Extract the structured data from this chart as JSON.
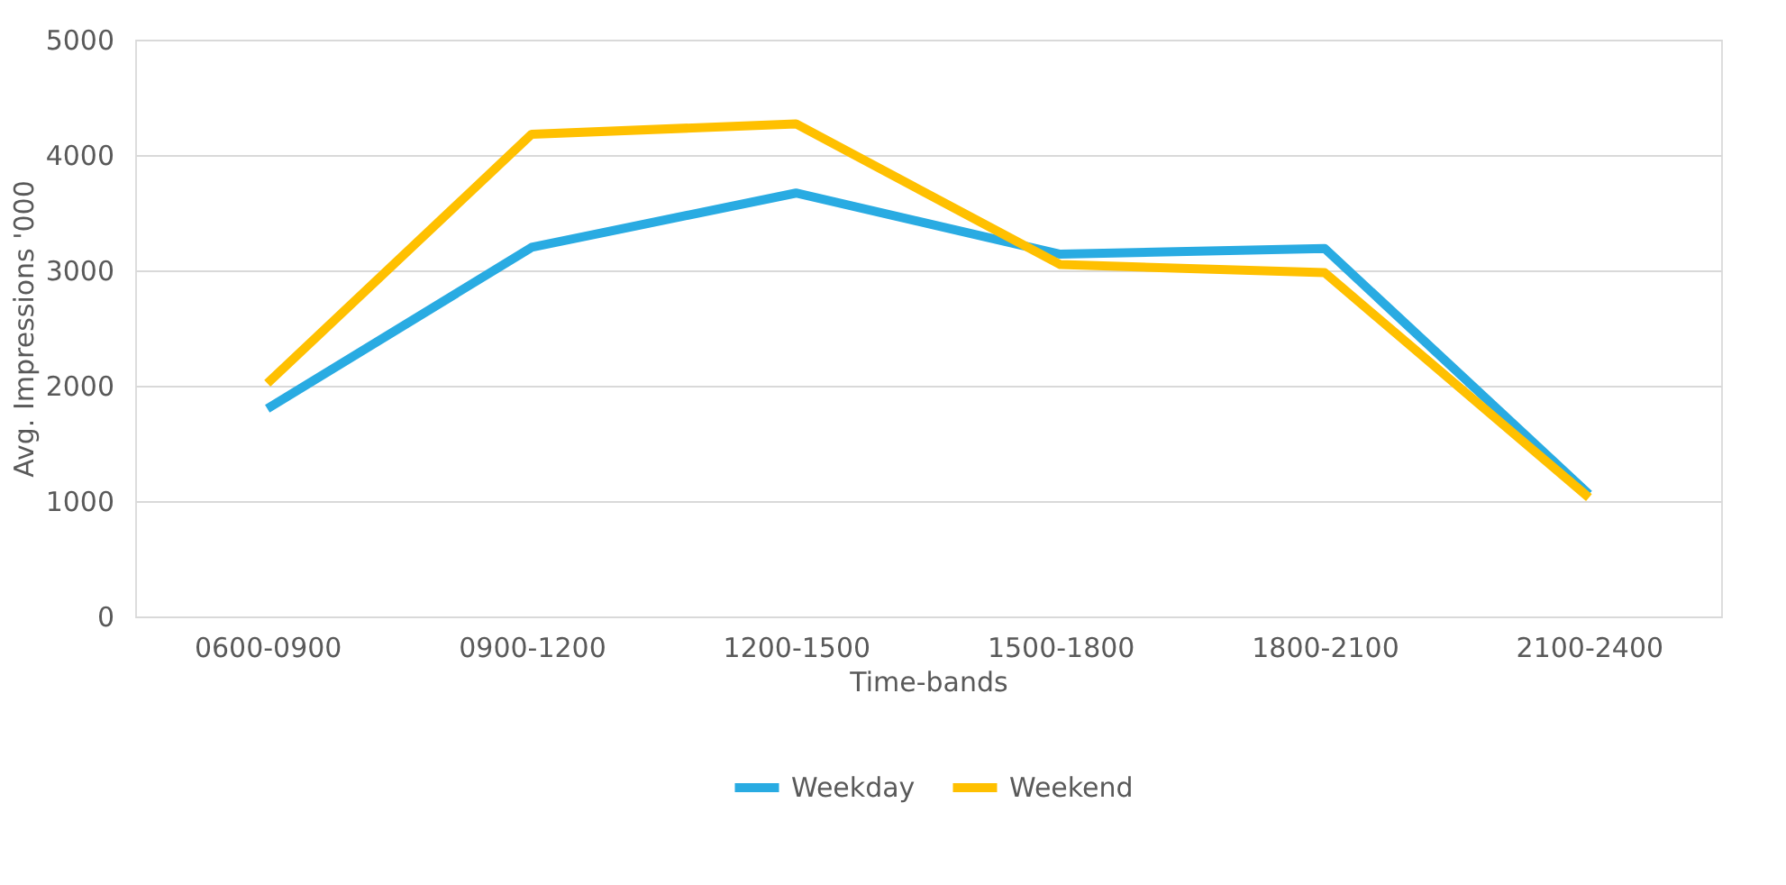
{
  "chart_data": {
    "type": "line",
    "xlabel": "Time-bands",
    "ylabel": "Avg. Impressions '000",
    "categories": [
      "0600-0900",
      "0900-1200",
      "1200-1500",
      "1500-1800",
      "1800-2100",
      "2100-2400"
    ],
    "series": [
      {
        "name": "Weekday",
        "color": "#29abe2",
        "values": [
          1800,
          3200,
          3670,
          3140,
          3190,
          1060
        ]
      },
      {
        "name": "Weekend",
        "color": "#ffc000",
        "values": [
          2020,
          4180,
          4270,
          3050,
          2980,
          1030
        ]
      }
    ],
    "ylim": [
      0,
      5000
    ],
    "yticks": [
      0,
      1000,
      2000,
      3000,
      4000,
      5000
    ],
    "grid": "y",
    "legend": "bottom",
    "marker": "none",
    "line_style": "solid"
  }
}
